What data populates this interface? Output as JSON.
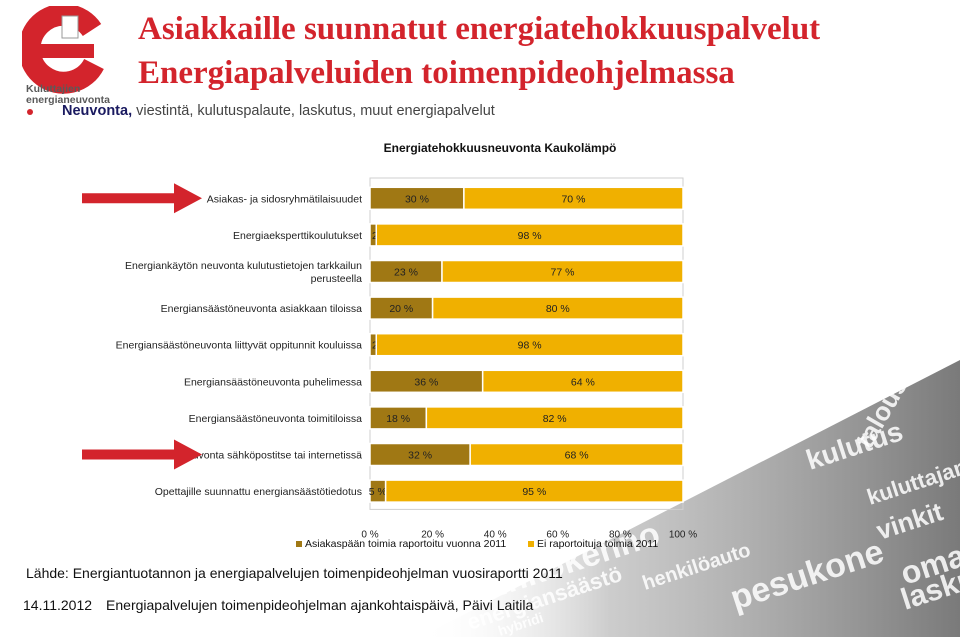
{
  "logo": {
    "org_line1": "Kuluttajien",
    "org_line2": "energianeuvonta"
  },
  "title_line1": "Asiakkaille suunnatut energiatehokkuuspalvelut",
  "title_line2": "Energiapalveluiden toimenpideohjelmassa",
  "subtitle_bold": "Neuvonta,",
  "subtitle_rest": " viestintä, kulutuspalaute, laskutus, muut energiapalvelut",
  "colors": {
    "series1": "#a07814",
    "series2": "#f0b000",
    "title": "#d3242c",
    "arrow": "#d3242c"
  },
  "chart_data": {
    "type": "bar",
    "orientation": "horizontal",
    "stacked": "percent",
    "title": "Energiatehokkuusneuvonta Kaukolämpö",
    "categories": [
      "Asiakas- ja sidosryhmätilaisuudet",
      "Energiaeksperttikoulutukset",
      "Energiankäytön neuvonta kulutustietojen tarkkailun perusteella",
      "Energiansäästöneuvonta asiakkaan tiloissa",
      "Energiansäästöneuvonta liittyvät oppitunnit kouluissa",
      "Energiansäästöneuvonta puhelimessa",
      "Energiansäästöneuvonta toimitiloissa",
      "Neuvonta sähköpostitse tai internetissä",
      "Opettajille suunnattu energiansäästötiedotus"
    ],
    "category_lines": [
      [
        "Asiakas- ja sidosryhmätilaisuudet"
      ],
      [
        "Energiaeksperttikoulutukset"
      ],
      [
        "Energiankäytön neuvonta kulutustietojen tarkkailun",
        "perusteella"
      ],
      [
        "Energiansäästöneuvonta asiakkaan tiloissa"
      ],
      [
        "Energiansäästöneuvonta liittyvät oppitunnit kouluissa"
      ],
      [
        "Energiansäästöneuvonta puhelimessa"
      ],
      [
        "Energiansäästöneuvonta toimitiloissa"
      ],
      [
        "Neuvonta sähköpostitse tai internetissä"
      ],
      [
        "Opettajille suunnattu energiansäästötiedotus"
      ]
    ],
    "highlighted": [
      0,
      7
    ],
    "series": [
      {
        "name": "Asiakaspään toimia raportoitu vuonna 2011",
        "values": [
          30,
          2,
          23,
          20,
          2,
          36,
          18,
          32,
          5
        ],
        "labels": [
          "30 %",
          "2 %",
          "23 %",
          "20 %",
          "2 %",
          "36 %",
          "18 %",
          "32 %",
          "5 %"
        ]
      },
      {
        "name": "Ei raportoituja toimia 2011",
        "values": [
          70,
          98,
          77,
          80,
          98,
          64,
          82,
          68,
          95
        ],
        "labels": [
          "70 %",
          "98 %",
          "77 %",
          "80 %",
          "98 %",
          "64 %",
          "82 %",
          "68 %",
          "95 %"
        ]
      }
    ],
    "x_ticks": [
      "0 %",
      "20 %",
      "40 %",
      "60 %",
      "80 %",
      "100 %"
    ],
    "xlim": [
      0,
      100
    ],
    "legend_position": "bottom"
  },
  "source_text": "Lähde: Energiantuotannon ja energiapalvelujen toimenpideohjelman vuosiraportti 2011",
  "footer_date": "14.11.2012",
  "footer_event": "Energiapalvelujen toimenpideohjelman ajankohtaispäivä, Päivi Laitila",
  "background_words": [
    "aurinkokenno",
    "pesukone",
    "henkilöauto",
    "energiansäästö",
    "kulutus",
    "talous",
    "vinkit",
    "laskut",
    "hybridi",
    "oma",
    "kuluttajan"
  ]
}
